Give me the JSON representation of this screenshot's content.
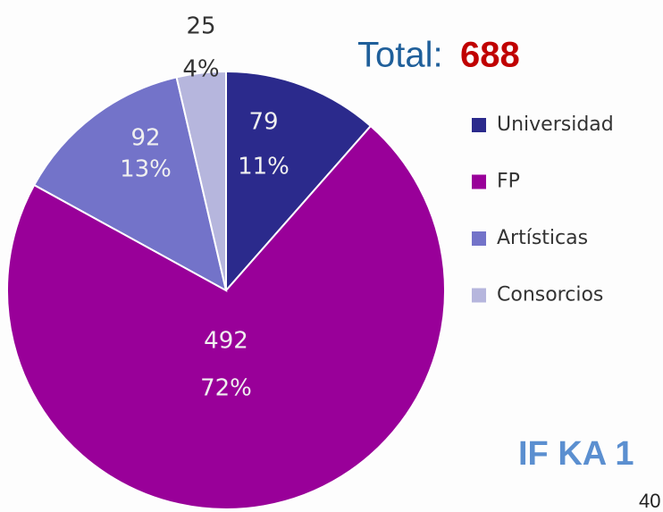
{
  "chart_data": {
    "type": "pie",
    "categories": [
      "Universidad",
      "FP",
      "Artísticas",
      "Consorcios"
    ],
    "values": [
      79,
      492,
      92,
      25
    ],
    "percent_labels": [
      "11%",
      "72%",
      "13%",
      "4%"
    ],
    "colors": [
      "#2b2a8c",
      "#990099",
      "#7373c9",
      "#b6b6dd"
    ],
    "total_label": "Total:",
    "total": 688,
    "annotations": [
      "IF KA 1",
      "40"
    ]
  }
}
